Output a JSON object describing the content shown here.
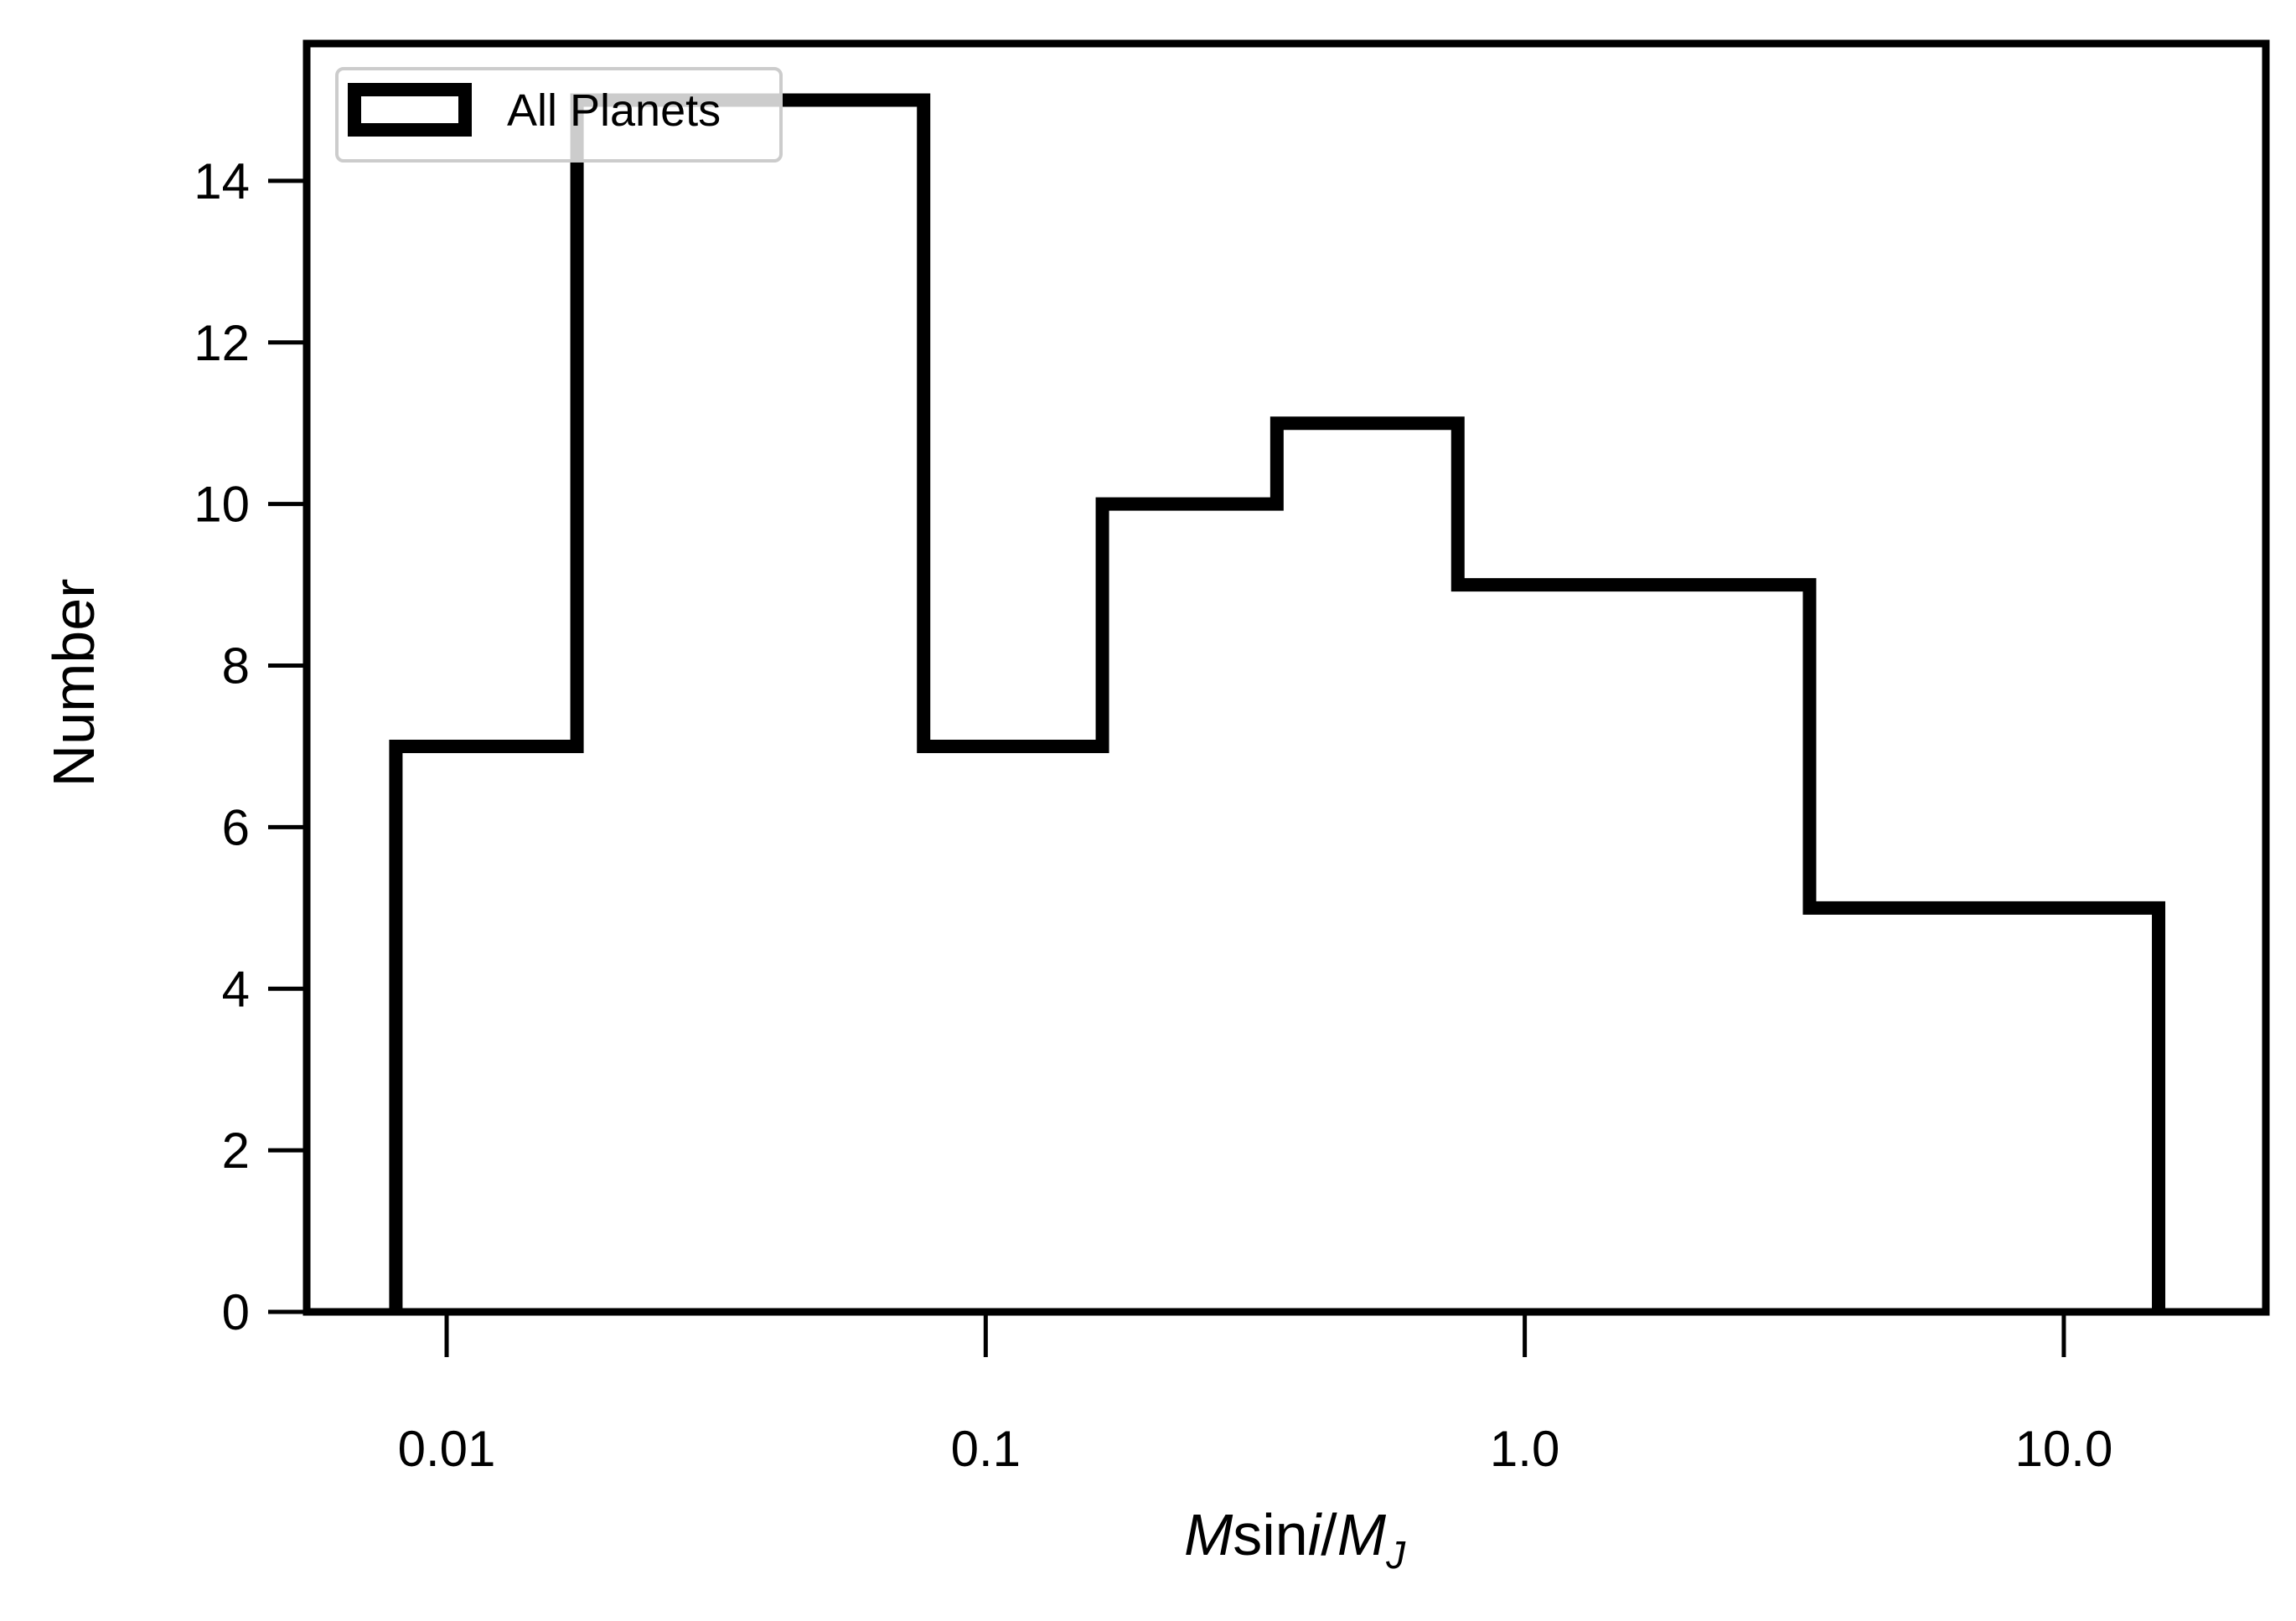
{
  "chart_data": {
    "type": "histogram",
    "xscale": "log",
    "xlim": [
      0.0055,
      23.7
    ],
    "ylim": [
      0,
      15.7
    ],
    "bin_edges": [
      0.00805,
      0.01745,
      0.0767,
      0.1646,
      0.3469,
      0.7514,
      3.375,
      14.99
    ],
    "counts": [
      7,
      15,
      7,
      10,
      11,
      9,
      5
    ],
    "series": [
      {
        "name": "All Planets",
        "style": "step-outline",
        "color": "#000000"
      }
    ],
    "xticks": [
      0.01,
      0.1,
      1.0,
      10.0
    ],
    "xtick_labels": [
      "0.01",
      "0.1",
      "1.0",
      "10.0"
    ],
    "yticks": [
      0,
      2,
      4,
      6,
      8,
      10,
      12,
      14
    ],
    "ytick_labels": [
      "0",
      "2",
      "4",
      "6",
      "8",
      "10",
      "12",
      "14"
    ],
    "ylabel": "Number",
    "xlabel": {
      "M": "M",
      "sin": "sin",
      "i": "i",
      "slash": "/",
      "MJ": "M",
      "sub": "J"
    },
    "legend": {
      "position": "top-left",
      "label": "All Planets"
    },
    "grid": false
  }
}
